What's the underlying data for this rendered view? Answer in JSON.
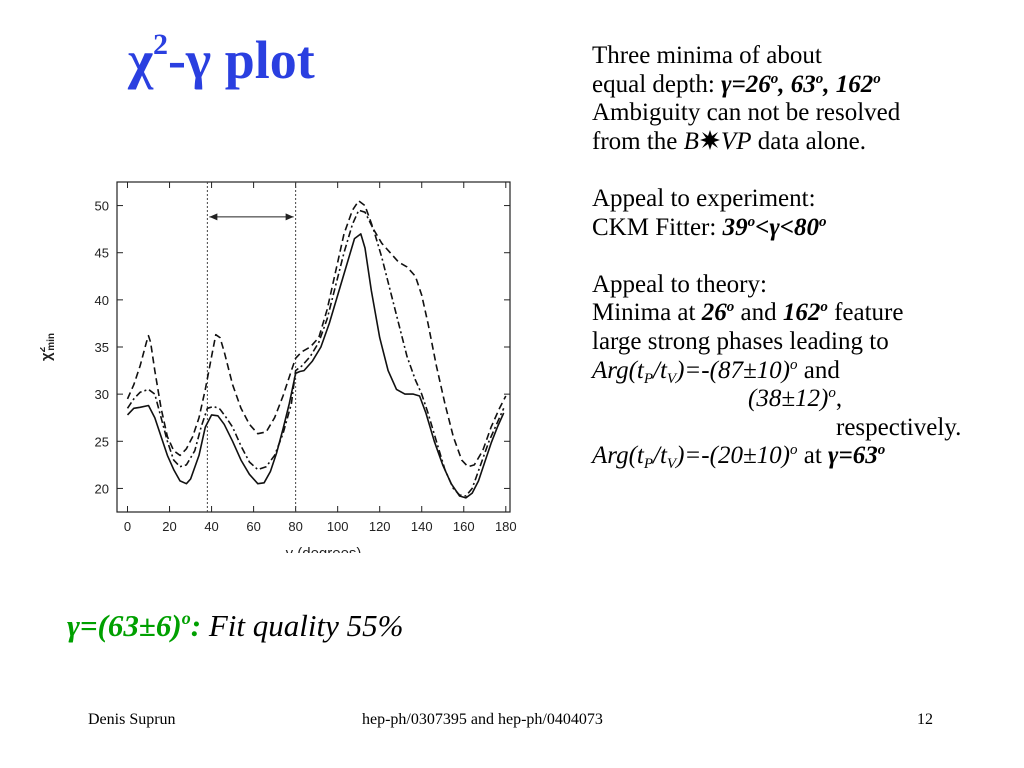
{
  "slide": {
    "title_main": "χ",
    "title_sup": "2",
    "title_rest": "-γ plot",
    "para1": {
      "line1": "Three minima of about",
      "line2_prefix": "equal depth: ",
      "line2_values": "γ=26",
      "line2_sup1": "o",
      "line2_mid": ", 63",
      "line2_sup2": "o",
      "line2_end": ", 162",
      "line2_sup3": "o",
      "line3": "Ambiguity can not be resolved",
      "line4_prefix": "from the ",
      "line4_b": "B",
      "line4_vp": "VP",
      "line4_suffix": " data alone."
    },
    "para2": {
      "line1": "Appeal to experiment:",
      "line2_prefix": "CKM Fitter: ",
      "range_a": "39",
      "range_sup_a": "o",
      "range_mid": "<γ<80",
      "range_sup_b": "o"
    },
    "para3": {
      "line1": "Appeal to theory:",
      "line2_prefix": "Minima at ",
      "val_a": "26",
      "sup_a": "o",
      "and_text": " and ",
      "val_b": "162",
      "sup_b": "o",
      "line2_suffix": " feature",
      "line3": "large strong phases leading to",
      "arg_prefix": "Arg(t",
      "sub_p": "P",
      "slash_t": "/t",
      "sub_v": "V",
      "arg_value1": ")=-(87±10)",
      "arg_sup1": "o",
      "and_word": " and",
      "arg_value2": "(38±12)",
      "arg_sup2": "o",
      "comma": ",",
      "respectively": "respectively.",
      "arg_value3": ")=-(20±10)",
      "arg_sup3": "o",
      "at_word": " at ",
      "gamma_val": "γ=63",
      "gamma_sup": "o"
    },
    "result": {
      "gamma_text": "γ=(63±6)",
      "gamma_sup": "o",
      "colon": ":",
      "fit_text": " Fit quality 55%"
    },
    "footer": {
      "author": "Denis Suprun",
      "refs": "hep-ph/0307395 and hep-ph/0404073",
      "page": "12"
    },
    "colors": {
      "title": "#2a3fe0",
      "result": "#00a000",
      "text": "#000000"
    },
    "icons": {
      "decay_arrow": "starburst-arrow-icon"
    }
  },
  "chart_data": {
    "type": "line",
    "xlabel": "γ (degrees)",
    "ylabel_main": "χ",
    "ylabel_sup": "2",
    "ylabel_sub": "min",
    "xlim": [
      -5,
      182
    ],
    "ylim": [
      17.5,
      52.5
    ],
    "xticks": [
      0,
      20,
      40,
      60,
      80,
      100,
      120,
      140,
      160,
      180
    ],
    "yticks": [
      20,
      25,
      30,
      35,
      40,
      45,
      50
    ],
    "vlines": [
      38,
      80
    ],
    "range_arrow": {
      "from": 38,
      "to": 80,
      "y": 48.8
    },
    "grid": false,
    "series": [
      {
        "style": "solid",
        "x": [
          0,
          3,
          6,
          10,
          13,
          16,
          19,
          22,
          25,
          28,
          30,
          34,
          37,
          40,
          43,
          46,
          50,
          54,
          58,
          62,
          65,
          68,
          71,
          74,
          77,
          80,
          82,
          84,
          88,
          92,
          96,
          100,
          104,
          108,
          111,
          113,
          116,
          120,
          124,
          128,
          132,
          136,
          139,
          142,
          146,
          150,
          154,
          158,
          161,
          164,
          167,
          170,
          173,
          176,
          179
        ],
        "y": [
          27.8,
          28.5,
          28.6,
          28.8,
          27.5,
          25.5,
          23.5,
          22.0,
          20.8,
          20.5,
          21.0,
          23.5,
          26.5,
          27.8,
          27.7,
          26.8,
          25.0,
          23.0,
          21.5,
          20.5,
          20.6,
          21.8,
          23.8,
          26.3,
          29.0,
          32.2,
          32.4,
          32.5,
          33.5,
          35.0,
          37.5,
          40.5,
          43.5,
          46.5,
          47.0,
          45.5,
          41.0,
          36.0,
          32.5,
          30.5,
          30.0,
          30.0,
          29.8,
          28.0,
          25.0,
          22.5,
          20.5,
          19.2,
          19.0,
          19.5,
          20.8,
          22.8,
          24.8,
          26.5,
          28.0
        ]
      },
      {
        "style": "dashdot",
        "x": [
          0,
          3,
          6,
          10,
          13,
          16,
          19,
          22,
          25,
          28,
          32,
          35,
          38,
          41,
          44,
          47,
          50,
          54,
          58,
          62,
          66,
          70,
          74,
          78,
          80,
          83,
          87,
          91,
          95,
          99,
          103,
          107,
          110,
          113,
          117,
          121,
          125,
          129,
          133,
          137,
          140,
          143,
          147,
          151,
          155,
          158,
          161,
          164,
          168,
          172,
          176,
          179
        ],
        "y": [
          28.5,
          29.5,
          30.2,
          30.5,
          30.0,
          27.5,
          25.0,
          23.0,
          22.3,
          22.5,
          24.0,
          26.5,
          28.5,
          28.7,
          28.4,
          27.5,
          26.5,
          24.5,
          22.8,
          22.0,
          22.3,
          23.5,
          25.8,
          29.0,
          32.5,
          33.0,
          34.0,
          35.5,
          38.0,
          41.5,
          45.0,
          48.0,
          49.5,
          49.3,
          47.5,
          44.5,
          41.0,
          37.5,
          34.0,
          31.5,
          30.0,
          28.0,
          25.0,
          22.0,
          20.0,
          19.3,
          19.2,
          20.0,
          22.5,
          25.0,
          27.0,
          28.5
        ]
      },
      {
        "style": "dashed",
        "x": [
          0,
          3,
          6,
          9,
          10,
          11,
          13,
          16,
          19,
          22,
          25,
          28,
          31,
          34,
          37,
          40,
          42,
          44,
          46,
          50,
          54,
          58,
          62,
          66,
          70,
          74,
          78,
          80,
          83,
          87,
          91,
          95,
          99,
          103,
          107,
          110,
          113,
          117,
          121,
          125,
          129,
          133,
          137,
          140,
          143,
          147,
          151,
          155,
          159,
          162,
          165,
          169,
          173,
          177,
          180
        ],
        "y": [
          29.5,
          31.0,
          33.0,
          35.5,
          36.2,
          35.5,
          32.5,
          28.5,
          25.5,
          24.0,
          23.5,
          24.2,
          25.5,
          27.5,
          30.5,
          34.0,
          36.3,
          36.0,
          34.5,
          31.0,
          28.5,
          26.8,
          25.8,
          26.0,
          27.5,
          29.8,
          32.5,
          33.8,
          34.5,
          35.0,
          36.0,
          39.0,
          43.0,
          47.0,
          49.5,
          50.5,
          50.0,
          47.5,
          46.0,
          45.0,
          44.0,
          43.5,
          42.5,
          40.5,
          37.5,
          33.0,
          29.0,
          25.5,
          23.0,
          22.3,
          22.5,
          24.0,
          26.5,
          28.5,
          29.8
        ]
      }
    ]
  }
}
